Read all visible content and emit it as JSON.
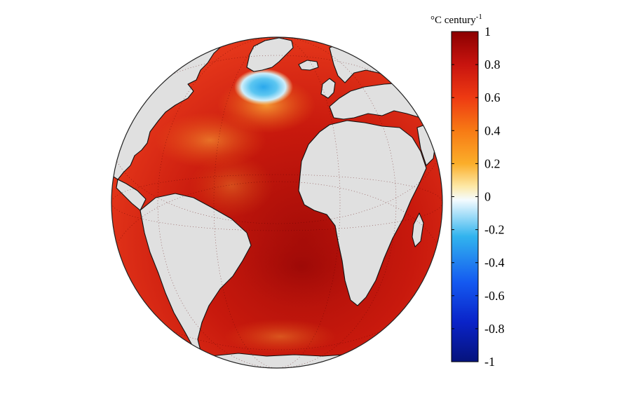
{
  "colorbar": {
    "unit_prefix": "°C century",
    "unit_exponent": "-1",
    "min": -1,
    "max": 1,
    "ticks": [
      "1",
      "0.8",
      "0.6",
      "0.4",
      "0.2",
      "0",
      "-0.2",
      "-0.4",
      "-0.6",
      "-0.8",
      "-1"
    ],
    "tick_values": [
      1,
      0.8,
      0.6,
      0.4,
      0.2,
      0,
      -0.2,
      -0.4,
      -0.6,
      -0.8,
      -1
    ],
    "colors": {
      "max": "#8b0000",
      "high": "#c8140f",
      "mid_high": "#ee3a12",
      "warm": "#f77a14",
      "orange": "#fbae2a",
      "light": "#fde9a8",
      "zero": "#f4fbff",
      "cool": "#32b4ee",
      "blue": "#1459f0",
      "deep": "#0a23c8",
      "min": "#06137c"
    }
  },
  "map": {
    "land_color": "#e0e0e0",
    "ocean_base_color": "#cf200e",
    "cold_anomaly_color": "#3cb6ee"
  }
}
